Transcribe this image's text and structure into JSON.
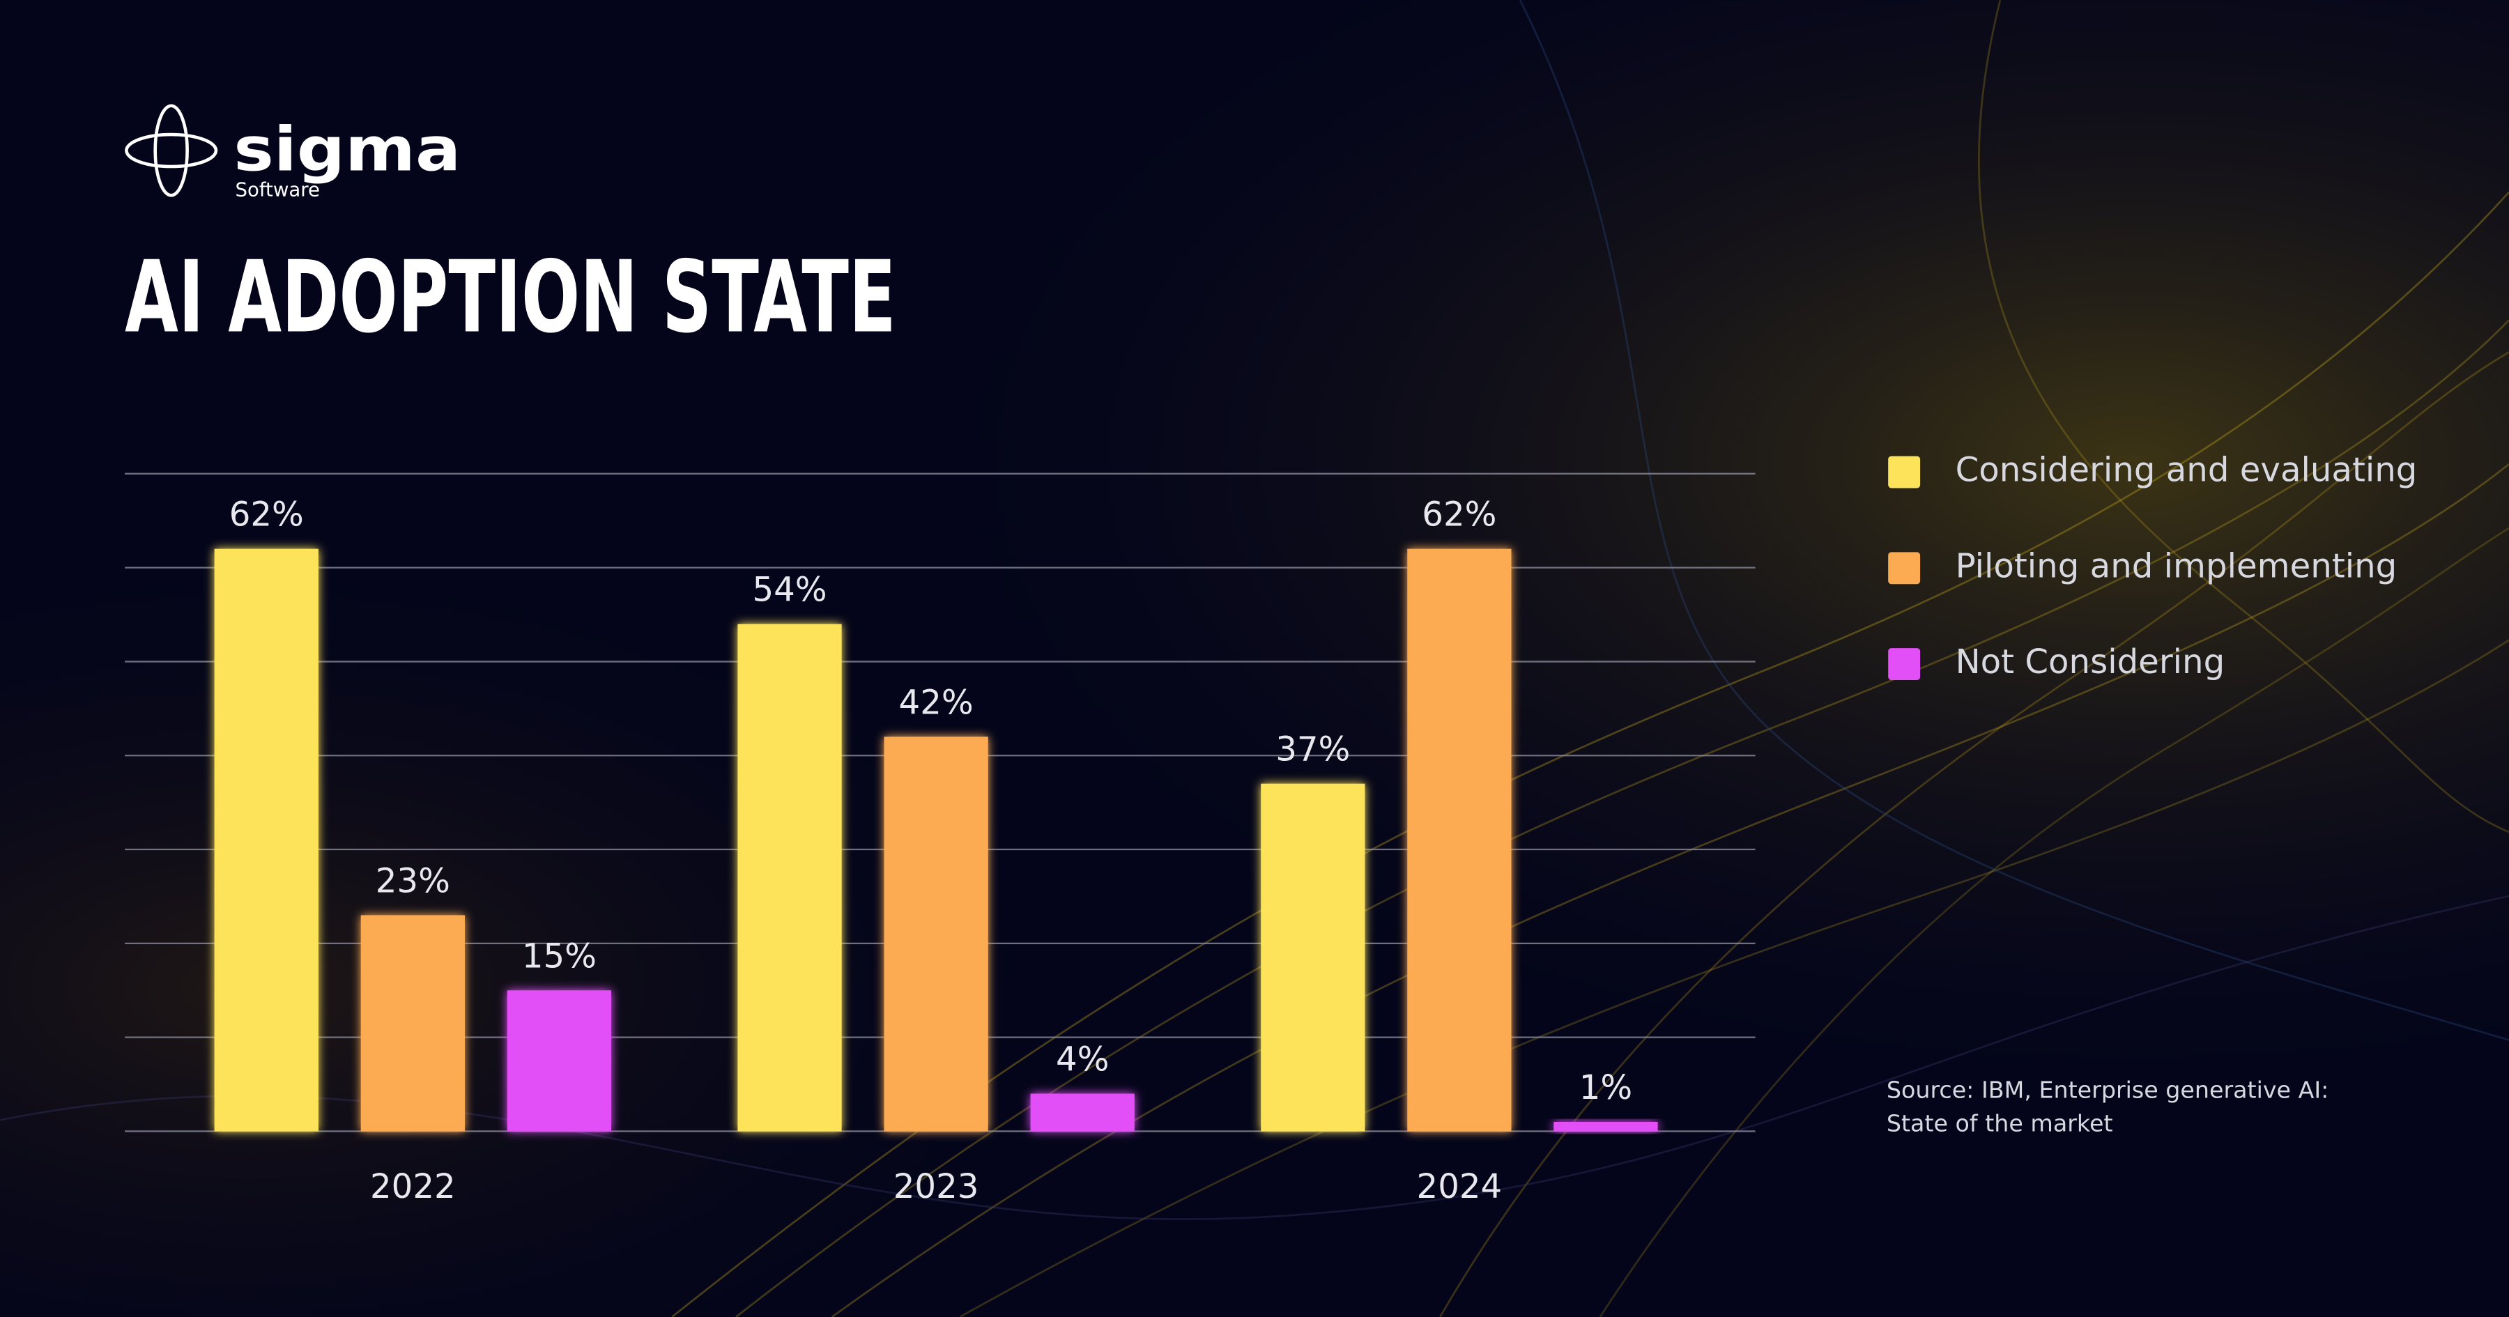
{
  "brand": {
    "name": "sigma",
    "tagline": "Software"
  },
  "chart_data": {
    "type": "bar",
    "title": "AI ADOPTION STATE",
    "categories": [
      "2022",
      "2023",
      "2024"
    ],
    "series": [
      {
        "name": "Considering and evaluating",
        "color": "#fde35a",
        "values": [
          62,
          54,
          37
        ],
        "value_labels": [
          "62%",
          "54%",
          "37%"
        ]
      },
      {
        "name": "Piloting and implementing",
        "color": "#fdab52",
        "values": [
          23,
          42,
          62
        ],
        "value_labels": [
          "23%",
          "42%",
          "62%"
        ]
      },
      {
        "name": "Not Considering",
        "color": "#e24ff6",
        "values": [
          15,
          4,
          1
        ],
        "value_labels": [
          "15%",
          "4%",
          "1%"
        ]
      }
    ],
    "ylim": [
      0,
      70
    ],
    "yticks": [
      0,
      10,
      20,
      30,
      40,
      50,
      60,
      70
    ],
    "grid": true,
    "legend": "right",
    "source": [
      "Source: IBM, Enterprise generative AI:",
      "State of the market"
    ]
  }
}
